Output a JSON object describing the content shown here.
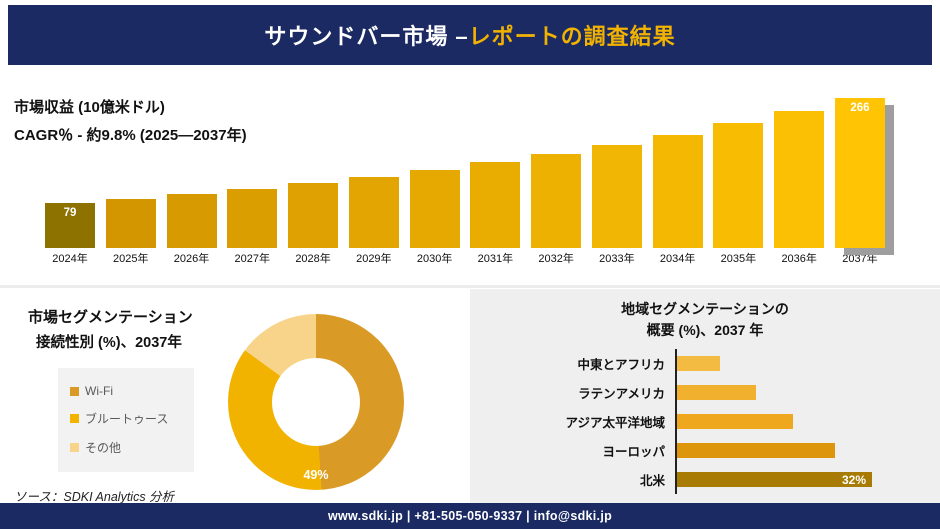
{
  "palette": {
    "navy": "#1b2a63",
    "gold": "#f2b200",
    "bar_first": "#8e7200",
    "bar_start": "#d09200",
    "bar_end": "#ffc404",
    "bar_shadow": "#9e9e9e",
    "donut": {
      "wifi": "#d99b26",
      "bluetooth": "#f2b200",
      "other": "#f8d48a"
    },
    "region_colors": [
      "#f3bb42",
      "#f1b02e",
      "#efa71e",
      "#dd950c",
      "#a87c04"
    ]
  },
  "header": {
    "title_white": "サウンドバー市場 –",
    "title_gold": "レポートの調査結果"
  },
  "revenue": {
    "title": "市場収益 (10億米ドル)",
    "cagr": "CAGR％ - 約9.8% (2025―2037年)"
  },
  "chart_data": [
    {
      "type": "bar",
      "title": "市場収益 (10億米ドル)",
      "subtitle": "CAGR％ - 約9.8% (2025―2037年)",
      "categories": [
        "2024年",
        "2025年",
        "2026年",
        "2027年",
        "2028年",
        "2029年",
        "2030年",
        "2031年",
        "2032年",
        "2033年",
        "2034年",
        "2035年",
        "2036年",
        "2037年"
      ],
      "values": [
        79,
        87,
        95,
        105,
        115,
        126,
        138,
        152,
        167,
        183,
        201,
        221,
        243,
        266
      ],
      "data_labels_shown": {
        "first": "79",
        "last": "266"
      },
      "xlabel": "",
      "ylabel": "",
      "ylim": [
        0,
        280
      ],
      "grid": false,
      "legend": "none"
    },
    {
      "type": "pie",
      "title": "市場セグメンテーション 接続性別 (%)、2037年",
      "labels": [
        "Wi-Fi",
        "ブルートゥース",
        "その他"
      ],
      "values": [
        49,
        36,
        15
      ],
      "shown_label": "49%",
      "legend_position": "left",
      "donut": true
    },
    {
      "type": "bar",
      "orientation": "horizontal",
      "title": "地域セグメンテーションの 概要 (%)、2037 年",
      "categories": [
        "中東とアフリカ",
        "ラテンアメリカ",
        "アジア太平洋地域",
        "ヨーロッパ",
        "北米"
      ],
      "values": [
        7,
        13,
        19,
        26,
        32
      ],
      "data_labels_shown": {
        "北米": "32%"
      },
      "xlim": [
        0,
        35
      ],
      "grid": false,
      "legend": "none"
    }
  ],
  "segmentation": {
    "title_line1": "市場セグメンテーション",
    "title_line2": "接続性別 (%)、2037年",
    "legend": [
      {
        "label": "Wi-Fi"
      },
      {
        "label": "ブルートゥース"
      },
      {
        "label": "その他"
      }
    ],
    "donut_label": "49%"
  },
  "regional": {
    "title_line1": "地域セグメンテーションの",
    "title_line2": "概要 (%)、2037 年",
    "value_label": "32%"
  },
  "source": "ソース：SDKI Analytics 分析",
  "footer": "www.sdki.jp | +81-505-050-9337 | info@sdki.jp"
}
